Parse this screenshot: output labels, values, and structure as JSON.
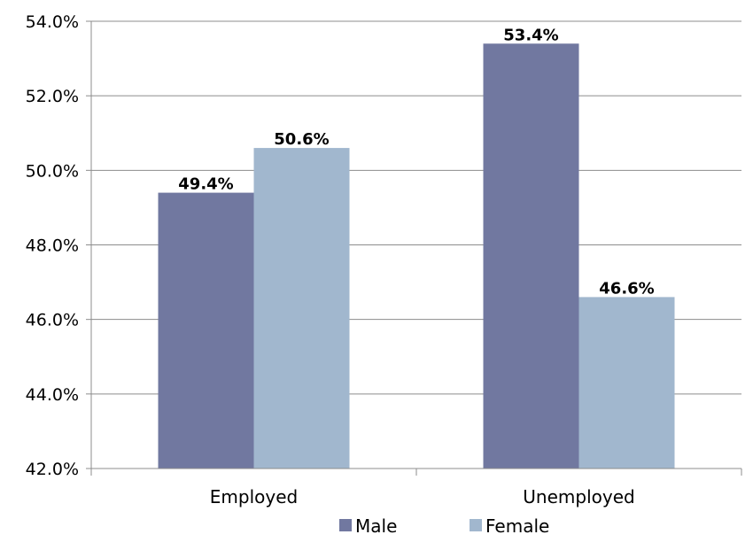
{
  "chart_data": {
    "type": "bar",
    "title": "",
    "xlabel": "",
    "ylabel": "",
    "categories": [
      "Employed",
      "Unemployed"
    ],
    "series": [
      {
        "name": "Male",
        "values": [
          49.4,
          53.4
        ],
        "color": "#7178A0",
        "labels": [
          "49.4%",
          "53.4%"
        ]
      },
      {
        "name": "Female",
        "values": [
          50.6,
          46.6
        ],
        "color": "#A1B7CE",
        "labels": [
          "50.6%",
          "46.6%"
        ]
      }
    ],
    "ylim": [
      42,
      54
    ],
    "yticks": [
      42,
      44,
      46,
      48,
      50,
      52,
      54
    ],
    "ytick_labels": [
      "42.0%",
      "44.0%",
      "46.0%",
      "48.0%",
      "50.0%",
      "52.0%",
      "54.0%"
    ],
    "grid": true,
    "legend_position": "bottom"
  }
}
